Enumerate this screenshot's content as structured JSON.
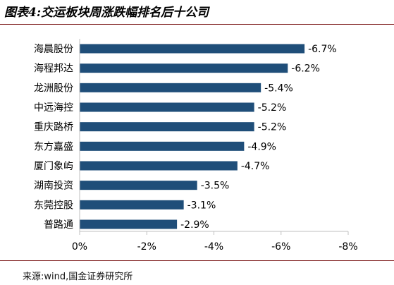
{
  "title": "图表4:交运板块周涨跌幅排名后十公司",
  "source": "来源:wind,国金证券研究所",
  "chart_data": {
    "type": "bar",
    "orientation": "horizontal",
    "categories": [
      "海晨股份",
      "海程邦达",
      "龙洲股份",
      "中远海控",
      "重庆路桥",
      "东方嘉盛",
      "厦门象屿",
      "湖南投资",
      "东莞控股",
      "普路通"
    ],
    "values": [
      -6.7,
      -6.2,
      -5.4,
      -5.2,
      -5.2,
      -4.9,
      -4.7,
      -3.5,
      -3.1,
      -2.9
    ],
    "data_labels": [
      "-6.7%",
      "-6.2%",
      "-5.4%",
      "-5.2%",
      "-5.2%",
      "-4.9%",
      "-4.7%",
      "-3.5%",
      "-3.1%",
      "-2.9%"
    ],
    "xticks": [
      0,
      -2,
      -4,
      -6,
      -8
    ],
    "xtick_labels": [
      "0%",
      "-2%",
      "-4%",
      "-6%",
      "-8%"
    ],
    "xlim": [
      0,
      -8
    ],
    "bar_color": "#1f4e79",
    "grid": false
  }
}
